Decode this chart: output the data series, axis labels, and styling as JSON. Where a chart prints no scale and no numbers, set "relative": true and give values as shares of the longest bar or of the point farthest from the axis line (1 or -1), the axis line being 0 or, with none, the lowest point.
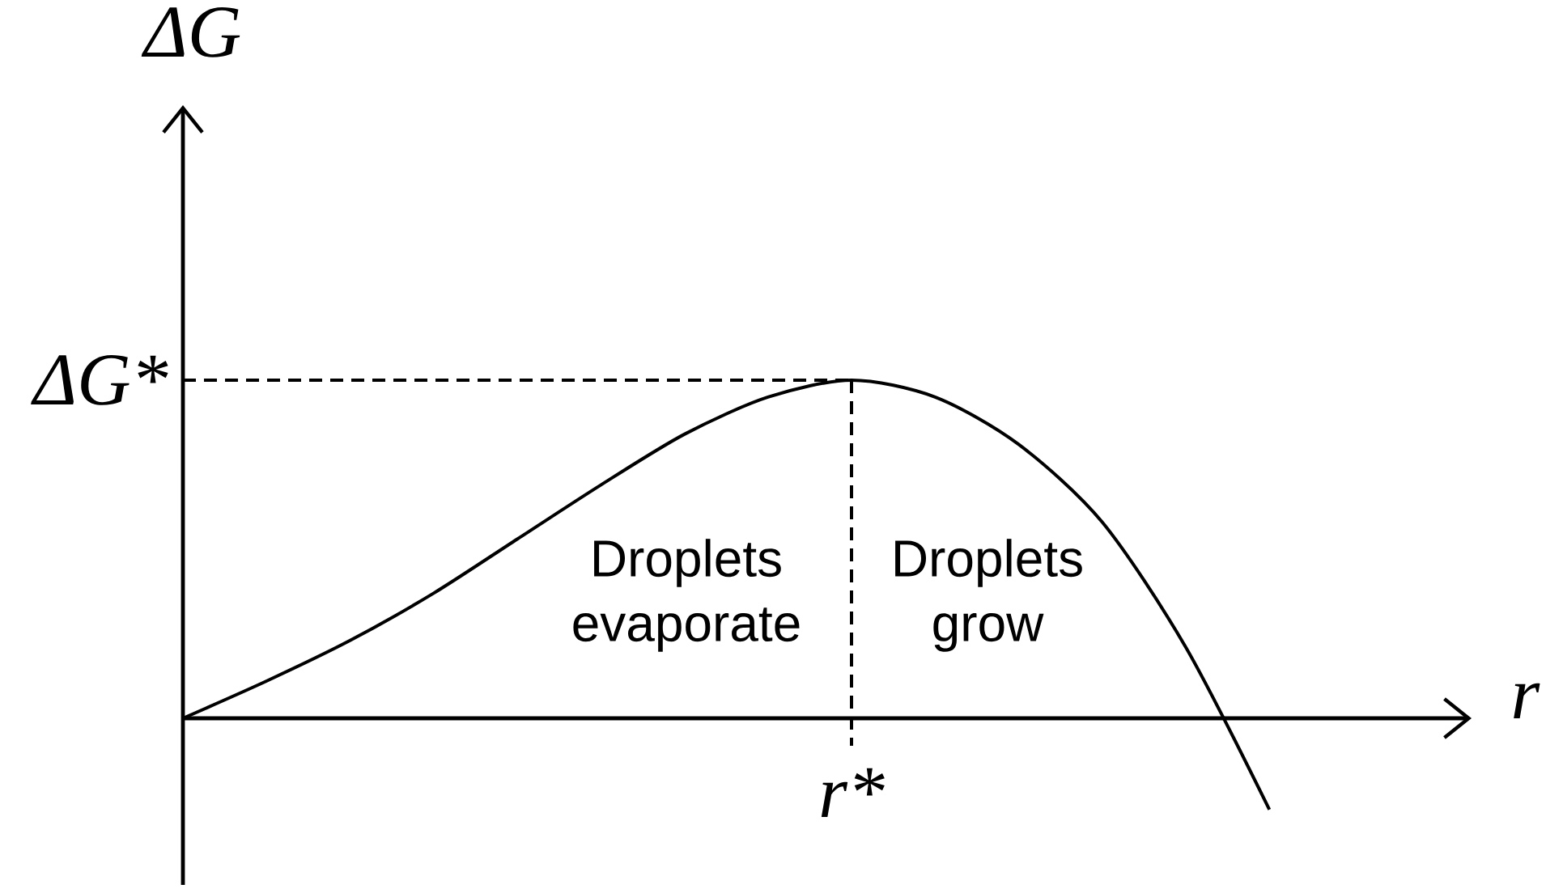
{
  "chart_data": {
    "type": "line",
    "relative": true,
    "xlabel": "r",
    "ylabel": "ΔG",
    "categories": [
      null,
      null,
      null,
      null,
      null,
      null,
      null,
      null,
      null,
      null,
      null,
      null,
      null,
      null,
      null,
      null
    ],
    "series": [
      {
        "color": "#000000",
        "values": [
          0,
          0.11,
          0.23,
          0.37,
          0.53,
          0.69,
          0.84,
          0.95,
          1,
          0.95,
          0.81,
          0.58,
          0.21,
          -0.27,
          null,
          null
        ]
      }
    ],
    "ref_lines": [
      {
        "axis": "y",
        "value": 1,
        "label": "ΔG*",
        "line_style": "dashed",
        "color": "#000000"
      }
    ],
    "annotations": [
      "r*",
      "Droplets evaporate",
      "Droplets grow"
    ]
  }
}
